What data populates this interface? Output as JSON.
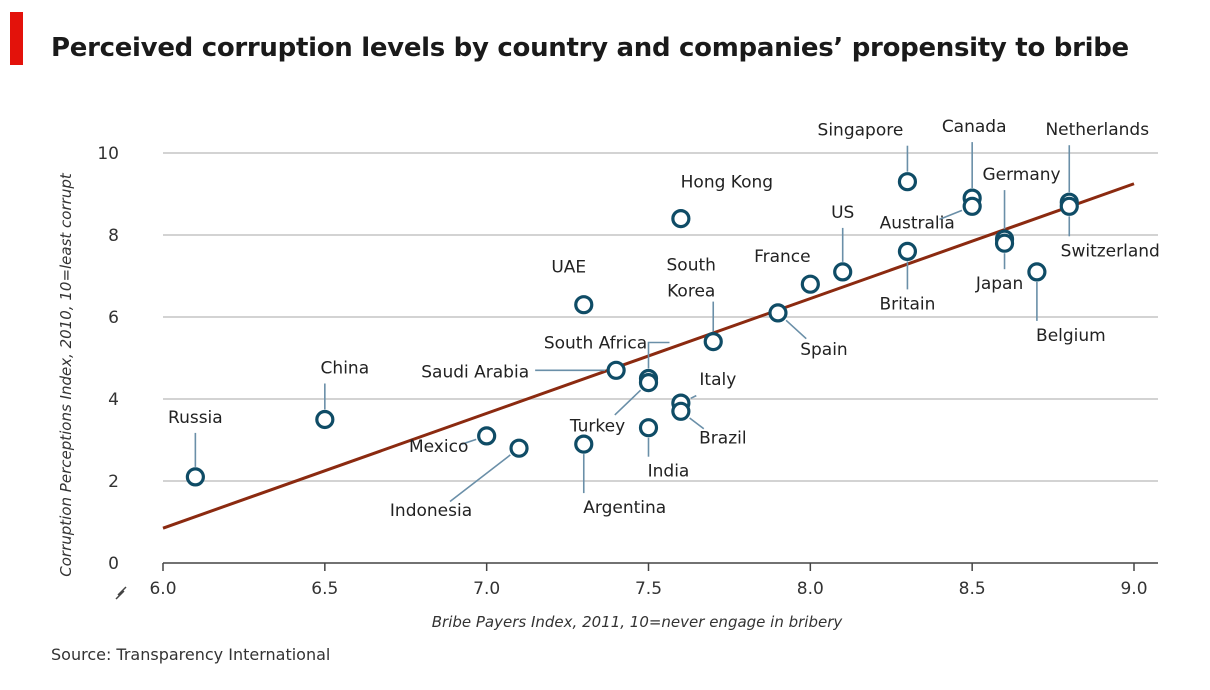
{
  "title": "Perceived corruption levels by country and companies’ propensity to bribe",
  "source": "Source: Transparency International",
  "colors": {
    "accent": "#e3120b",
    "trend": "#8b2a10",
    "marker": "#0f4c66",
    "leader": "#6a8fa8",
    "grid": "#d3d3d3"
  },
  "chart_data": {
    "type": "scatter",
    "title": "Perceived corruption levels by country and companies’ propensity to bribe",
    "xlabel": "Bribe Payers Index, 2011, 10=never engage in bribery",
    "ylabel": "Corruption Perceptions Index, 2010, 10=least corrupt",
    "xlim": [
      6.0,
      9.0
    ],
    "ylim": [
      0,
      10
    ],
    "x_ticks": [
      "6.0",
      "6.5",
      "7.0",
      "7.5",
      "8.0",
      "8.5",
      "9.0"
    ],
    "y_ticks": [
      "0",
      "2",
      "4",
      "6",
      "8",
      "10"
    ],
    "grid": true,
    "trendline": {
      "x": [
        6.0,
        9.0
      ],
      "y": [
        0.85,
        9.25
      ]
    },
    "points": [
      {
        "name": "Russia",
        "x": 6.1,
        "y": 2.1
      },
      {
        "name": "China",
        "x": 6.5,
        "y": 3.5
      },
      {
        "name": "Mexico",
        "x": 7.0,
        "y": 3.1
      },
      {
        "name": "Indonesia",
        "x": 7.1,
        "y": 2.8
      },
      {
        "name": "UAE",
        "x": 7.3,
        "y": 6.3
      },
      {
        "name": "Argentina",
        "x": 7.3,
        "y": 2.9
      },
      {
        "name": "Saudi Arabia",
        "x": 7.4,
        "y": 4.7
      },
      {
        "name": "South Africa",
        "x": 7.5,
        "y": 4.5
      },
      {
        "name": "Turkey",
        "x": 7.5,
        "y": 4.4
      },
      {
        "name": "India",
        "x": 7.5,
        "y": 3.3
      },
      {
        "name": "Hong Kong",
        "x": 7.6,
        "y": 8.4
      },
      {
        "name": "Italy",
        "x": 7.6,
        "y": 3.9
      },
      {
        "name": "Brazil",
        "x": 7.6,
        "y": 3.7
      },
      {
        "name": "South Korea",
        "x": 7.7,
        "y": 5.4
      },
      {
        "name": "Spain",
        "x": 7.9,
        "y": 6.1
      },
      {
        "name": "France",
        "x": 8.0,
        "y": 6.8
      },
      {
        "name": "US",
        "x": 8.1,
        "y": 7.1
      },
      {
        "name": "Singapore",
        "x": 8.3,
        "y": 9.3
      },
      {
        "name": "Britain",
        "x": 8.3,
        "y": 7.6
      },
      {
        "name": "Canada",
        "x": 8.5,
        "y": 8.9
      },
      {
        "name": "Australia",
        "x": 8.5,
        "y": 8.7
      },
      {
        "name": "Germany",
        "x": 8.6,
        "y": 7.9
      },
      {
        "name": "Japan",
        "x": 8.6,
        "y": 7.8
      },
      {
        "name": "Belgium",
        "x": 8.7,
        "y": 7.1
      },
      {
        "name": "Netherlands",
        "x": 8.8,
        "y": 8.8
      },
      {
        "name": "Switzerland",
        "x": 8.8,
        "y": 8.7
      }
    ]
  }
}
